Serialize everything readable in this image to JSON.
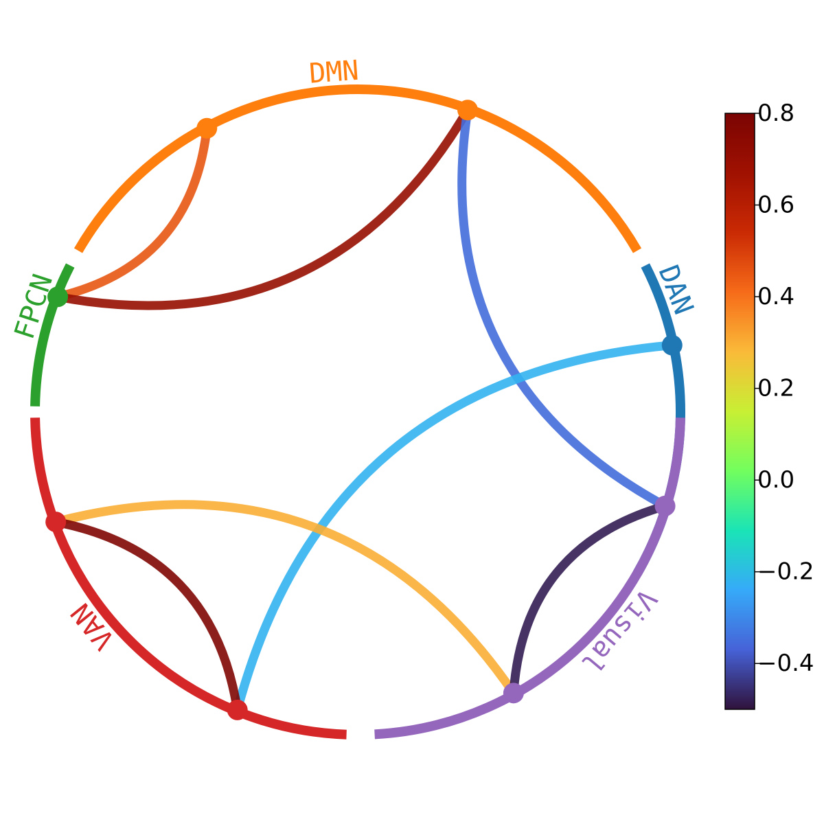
{
  "networks": [
    {
      "name": "DMN",
      "color": "#ff7f0e"
    },
    {
      "name": "DAN",
      "color": "#1f77b4"
    },
    {
      "name": "Visual",
      "color": "#9467bd"
    },
    {
      "name": "VAN",
      "color": "#d62728"
    },
    {
      "name": "FPCN",
      "color": "#2ca02c"
    }
  ],
  "nodes": [
    {
      "id": "dmn_a",
      "network": "DMN"
    },
    {
      "id": "dmn_b",
      "network": "DMN"
    },
    {
      "id": "dan_a",
      "network": "DAN"
    },
    {
      "id": "vis_a",
      "network": "Visual"
    },
    {
      "id": "vis_b",
      "network": "Visual"
    },
    {
      "id": "van_a",
      "network": "VAN"
    },
    {
      "id": "van_b",
      "network": "VAN"
    },
    {
      "id": "fpcn_a",
      "network": "FPCN"
    }
  ],
  "connections": [
    {
      "source": "dmn_a",
      "target": "fpcn_a",
      "value": 0.45
    },
    {
      "source": "dmn_b",
      "target": "fpcn_a",
      "value": 0.7
    },
    {
      "source": "dmn_b",
      "target": "vis_a",
      "value": -0.35
    },
    {
      "source": "dan_a",
      "target": "van_b",
      "value": -0.22
    },
    {
      "source": "van_a",
      "target": "vis_b",
      "value": 0.3
    },
    {
      "source": "van_a",
      "target": "van_b",
      "value": 0.78
    },
    {
      "source": "vis_a",
      "target": "vis_b",
      "value": -0.48
    }
  ],
  "colorbar": {
    "min": -0.5,
    "max": 0.8,
    "ticks": [
      "0.8",
      "0.6",
      "0.4",
      "0.2",
      "0.0",
      "−0.2",
      "−0.4"
    ],
    "colormap": "turbo"
  }
}
